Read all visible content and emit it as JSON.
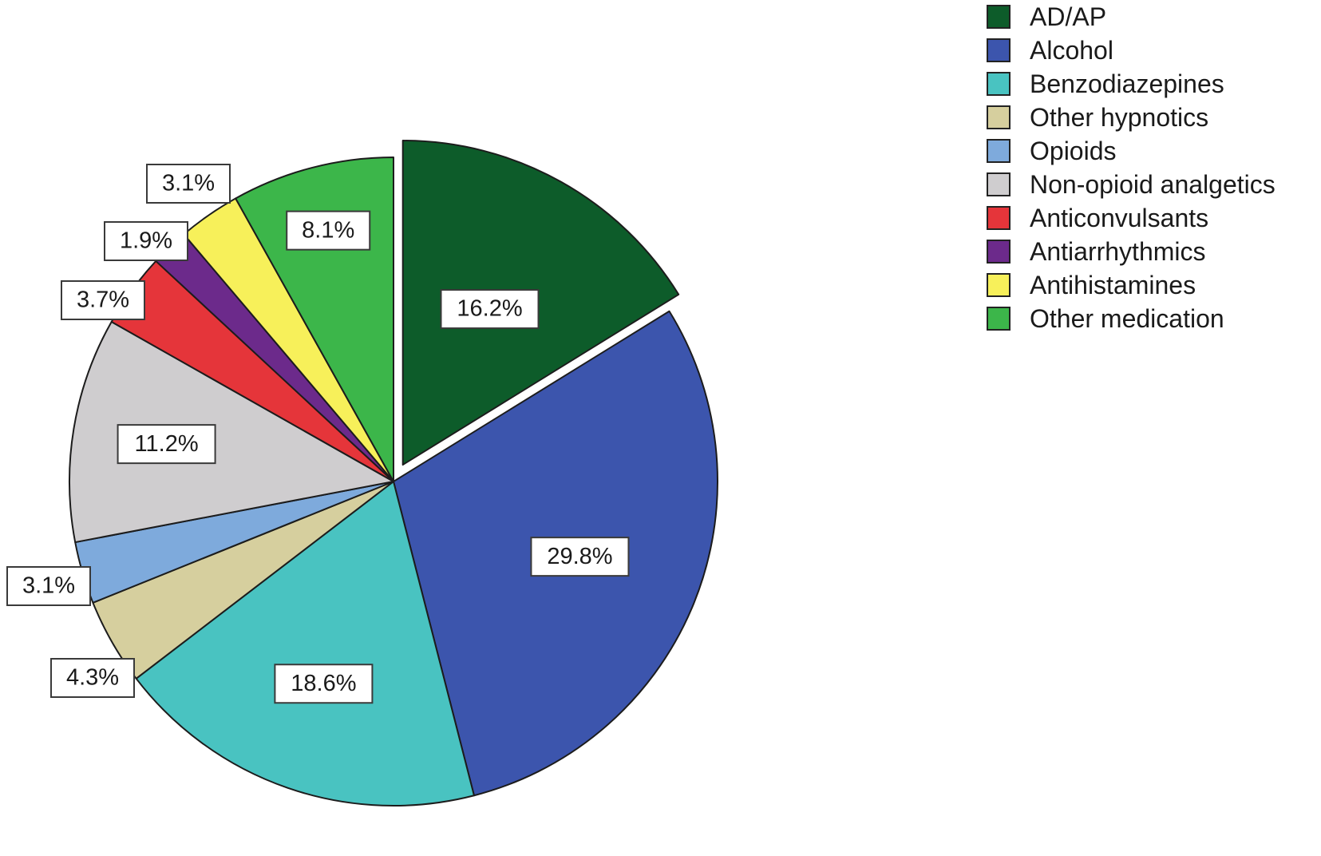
{
  "chart_data": {
    "type": "pie",
    "slices": [
      {
        "label": "AD/AP",
        "value": 16.2,
        "display": "16.2%",
        "color": "#0d5c2a",
        "exploded": true
      },
      {
        "label": "Alcohol",
        "value": 29.8,
        "display": "29.8%",
        "color": "#3c55ad"
      },
      {
        "label": "Benzodiazepines",
        "value": 18.6,
        "display": "18.6%",
        "color": "#49c3c1"
      },
      {
        "label": "Other hypnotics",
        "value": 4.3,
        "display": "4.3%",
        "color": "#d6cf9e"
      },
      {
        "label": "Opioids",
        "value": 3.1,
        "display": "3.1%",
        "color": "#7eaadc"
      },
      {
        "label": "Non-opioid analgetics",
        "value": 11.2,
        "display": "11.2%",
        "color": "#cfcdcf"
      },
      {
        "label": "Anticonvulsants",
        "value": 3.7,
        "display": "3.7%",
        "color": "#e5353a"
      },
      {
        "label": "Antiarrhythmics",
        "value": 1.9,
        "display": "1.9%",
        "color": "#6c2a8b"
      },
      {
        "label": "Antihistamines",
        "value": 3.1,
        "display": "3.1%",
        "color": "#f7f05a"
      },
      {
        "label": "Other medication",
        "value": 8.1,
        "display": "8.1%",
        "color": "#3cb64a"
      }
    ],
    "legend_position": "top-right",
    "start": "12 o'clock, clockwise"
  }
}
